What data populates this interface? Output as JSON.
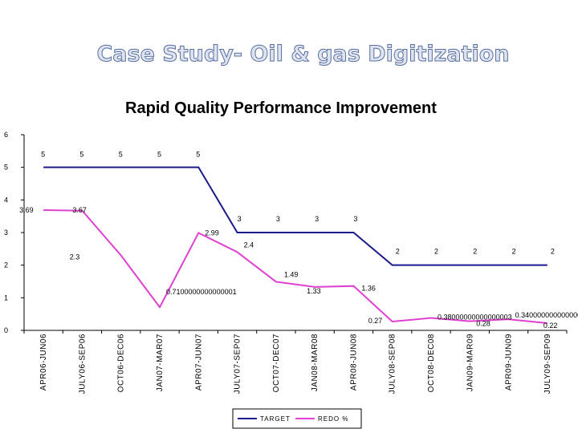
{
  "slide": {
    "title": "Case Study- Oil & gas Digitization"
  },
  "chart_data": {
    "type": "line",
    "title": "Rapid Quality Performance Improvement",
    "xlabel": "",
    "ylabel": "",
    "ylim": [
      0,
      6
    ],
    "yticks": [
      "0",
      "1",
      "2",
      "3",
      "4",
      "5",
      "6"
    ],
    "categories": [
      "APR06-JUN06",
      "JULY06-SEP06",
      "OCT06-DEC06",
      "JAN07-MAR07",
      "APR07-JUN07",
      "JULY07-SEP07",
      "OCT07-DEC07",
      "JAN08-MAR08",
      "APR08-JUN08",
      "JULY08-SEP08",
      "OCT08-DEC08",
      "JAN09-MAR09",
      "APR09-JUN09",
      "JULY09-SEP09"
    ],
    "series": [
      {
        "name": "TARGET",
        "color": "#1a1a8c",
        "values": [
          5,
          5,
          5,
          5,
          5,
          3,
          3,
          3,
          3,
          2,
          2,
          2,
          2,
          2
        ],
        "labels": [
          "5",
          "5",
          "5",
          "5",
          "5",
          "3",
          "3",
          "3",
          "3",
          "2",
          "2",
          "2",
          "2",
          "2"
        ]
      },
      {
        "name": "REDO %",
        "color": "#e040d0",
        "values": [
          3.69,
          3.67,
          2.3,
          0.71,
          2.99,
          2.4,
          1.49,
          1.33,
          1.36,
          0.27,
          0.38,
          0.28,
          0.34,
          0.22
        ],
        "labels": [
          "3.69",
          "3.67",
          "2.3",
          "0.7100000000000001",
          "2.99",
          "2.4",
          "1.49",
          "1.33",
          "1.36",
          "0.27",
          "0.38000000000000003",
          "0.28",
          "0.34000000000000002",
          "0.22"
        ]
      }
    ],
    "legend": [
      "TARGET",
      "REDO %"
    ],
    "legend_position": "bottom"
  }
}
